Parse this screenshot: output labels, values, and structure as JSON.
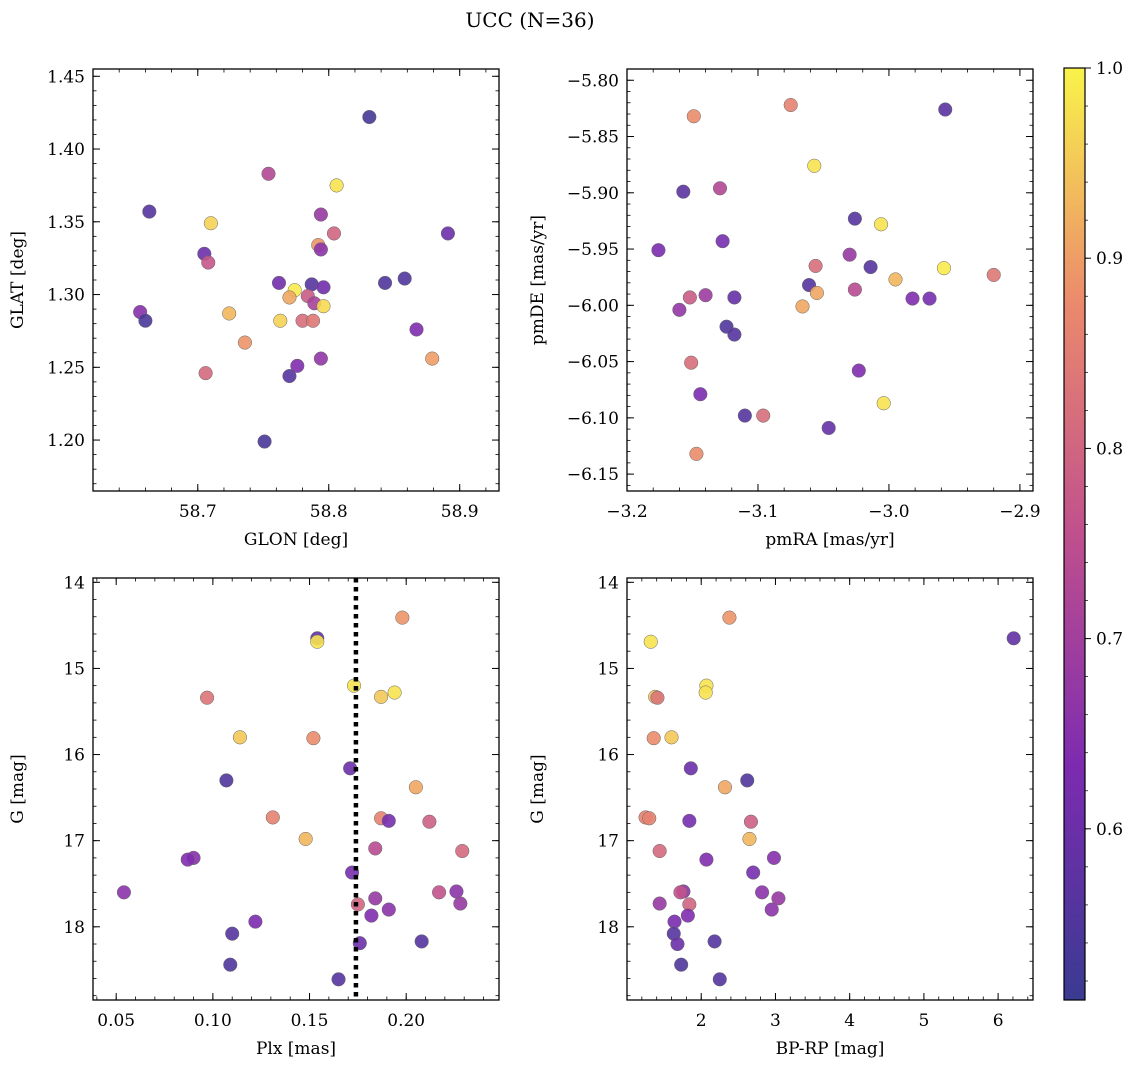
{
  "figure": {
    "title": "UCC (N=36)"
  },
  "colorbar": {
    "vmin": 0.51,
    "vmax": 1.0,
    "ticks": [
      0.6,
      0.7,
      0.8,
      0.9,
      1.0
    ],
    "tick_labels": [
      "0.6",
      "0.7",
      "0.8",
      "0.9",
      "1.0"
    ],
    "colormap": "plasma"
  },
  "chart_data": [
    {
      "type": "scatter",
      "title": "",
      "xlabel": "GLON [deg]",
      "ylabel": "GLAT [deg]",
      "xlim": [
        58.62,
        58.93
      ],
      "ylim": [
        1.165,
        1.455
      ],
      "y_inverted": false,
      "xticks": [
        58.7,
        58.8,
        58.9
      ],
      "xtick_labels": [
        "58.7",
        "58.8",
        "58.9"
      ],
      "yticks": [
        1.2,
        1.25,
        1.3,
        1.35,
        1.4,
        1.45
      ],
      "ytick_labels": [
        "1.20",
        "1.25",
        "1.30",
        "1.35",
        "1.40",
        "1.45"
      ],
      "points": [
        {
          "x": 58.831,
          "y": 1.422,
          "c": 0.53
        },
        {
          "x": 58.754,
          "y": 1.383,
          "c": 0.73
        },
        {
          "x": 58.806,
          "y": 1.375,
          "c": 0.98
        },
        {
          "x": 58.663,
          "y": 1.357,
          "c": 0.56
        },
        {
          "x": 58.794,
          "y": 1.355,
          "c": 0.68
        },
        {
          "x": 58.71,
          "y": 1.349,
          "c": 0.96
        },
        {
          "x": 58.891,
          "y": 1.342,
          "c": 0.6
        },
        {
          "x": 58.804,
          "y": 1.342,
          "c": 0.8
        },
        {
          "x": 58.792,
          "y": 1.334,
          "c": 0.89
        },
        {
          "x": 58.794,
          "y": 1.331,
          "c": 0.66
        },
        {
          "x": 58.705,
          "y": 1.328,
          "c": 0.6
        },
        {
          "x": 58.708,
          "y": 1.322,
          "c": 0.77
        },
        {
          "x": 58.858,
          "y": 1.311,
          "c": 0.55
        },
        {
          "x": 58.843,
          "y": 1.308,
          "c": 0.55
        },
        {
          "x": 58.762,
          "y": 1.308,
          "c": 0.61
        },
        {
          "x": 58.787,
          "y": 1.307,
          "c": 0.56
        },
        {
          "x": 58.796,
          "y": 1.305,
          "c": 0.61
        },
        {
          "x": 58.774,
          "y": 1.303,
          "c": 0.99
        },
        {
          "x": 58.784,
          "y": 1.299,
          "c": 0.78
        },
        {
          "x": 58.77,
          "y": 1.298,
          "c": 0.91
        },
        {
          "x": 58.789,
          "y": 1.294,
          "c": 0.71
        },
        {
          "x": 58.796,
          "y": 1.292,
          "c": 0.97
        },
        {
          "x": 58.656,
          "y": 1.288,
          "c": 0.65
        },
        {
          "x": 58.724,
          "y": 1.287,
          "c": 0.93
        },
        {
          "x": 58.66,
          "y": 1.282,
          "c": 0.54
        },
        {
          "x": 58.763,
          "y": 1.282,
          "c": 0.96
        },
        {
          "x": 58.78,
          "y": 1.282,
          "c": 0.82
        },
        {
          "x": 58.788,
          "y": 1.282,
          "c": 0.84
        },
        {
          "x": 58.867,
          "y": 1.276,
          "c": 0.64
        },
        {
          "x": 58.736,
          "y": 1.267,
          "c": 0.89
        },
        {
          "x": 58.879,
          "y": 1.256,
          "c": 0.9
        },
        {
          "x": 58.794,
          "y": 1.256,
          "c": 0.67
        },
        {
          "x": 58.776,
          "y": 1.251,
          "c": 0.64
        },
        {
          "x": 58.706,
          "y": 1.246,
          "c": 0.81
        },
        {
          "x": 58.77,
          "y": 1.244,
          "c": 0.56
        },
        {
          "x": 58.751,
          "y": 1.199,
          "c": 0.54
        }
      ]
    },
    {
      "type": "scatter",
      "title": "",
      "xlabel": "pmRA [mas/yr]",
      "ylabel": "pmDE [mas/yr]",
      "xlim": [
        -3.2,
        -2.89
      ],
      "ylim": [
        -6.165,
        -5.79
      ],
      "y_inverted": false,
      "xticks": [
        -3.2,
        -3.1,
        -3.0,
        -2.9
      ],
      "xtick_labels": [
        "−3.2",
        "−3.1",
        "−3.0",
        "−2.9"
      ],
      "yticks": [
        -6.15,
        -6.1,
        -6.05,
        -6.0,
        -5.95,
        -5.9,
        -5.85,
        -5.8
      ],
      "ytick_labels": [
        "−6.15",
        "−6.10",
        "−6.05",
        "−6.00",
        "−5.95",
        "−5.90",
        "−5.85",
        "−5.80"
      ],
      "points": [
        {
          "x": -3.075,
          "y": -5.822,
          "c": 0.86
        },
        {
          "x": -2.957,
          "y": -5.826,
          "c": 0.57
        },
        {
          "x": -3.149,
          "y": -5.832,
          "c": 0.88
        },
        {
          "x": -3.057,
          "y": -5.876,
          "c": 0.98
        },
        {
          "x": -3.129,
          "y": -5.896,
          "c": 0.73
        },
        {
          "x": -3.157,
          "y": -5.899,
          "c": 0.57
        },
        {
          "x": -3.026,
          "y": -5.923,
          "c": 0.56
        },
        {
          "x": -3.006,
          "y": -5.928,
          "c": 0.98
        },
        {
          "x": -3.127,
          "y": -5.943,
          "c": 0.62
        },
        {
          "x": -3.176,
          "y": -5.951,
          "c": 0.63
        },
        {
          "x": -3.03,
          "y": -5.955,
          "c": 0.68
        },
        {
          "x": -3.056,
          "y": -5.965,
          "c": 0.82
        },
        {
          "x": -2.958,
          "y": -5.967,
          "c": 0.99
        },
        {
          "x": -3.014,
          "y": -5.966,
          "c": 0.56
        },
        {
          "x": -2.92,
          "y": -5.973,
          "c": 0.84
        },
        {
          "x": -2.995,
          "y": -5.977,
          "c": 0.93
        },
        {
          "x": -3.061,
          "y": -5.982,
          "c": 0.56
        },
        {
          "x": -3.026,
          "y": -5.986,
          "c": 0.74
        },
        {
          "x": -3.055,
          "y": -5.989,
          "c": 0.91
        },
        {
          "x": -3.152,
          "y": -5.993,
          "c": 0.78
        },
        {
          "x": -3.14,
          "y": -5.991,
          "c": 0.69
        },
        {
          "x": -3.118,
          "y": -5.993,
          "c": 0.59
        },
        {
          "x": -2.982,
          "y": -5.994,
          "c": 0.64
        },
        {
          "x": -2.969,
          "y": -5.994,
          "c": 0.62
        },
        {
          "x": -3.066,
          "y": -6.001,
          "c": 0.91
        },
        {
          "x": -3.16,
          "y": -6.004,
          "c": 0.67
        },
        {
          "x": -3.124,
          "y": -6.019,
          "c": 0.55
        },
        {
          "x": -3.118,
          "y": -6.026,
          "c": 0.56
        },
        {
          "x": -3.151,
          "y": -6.051,
          "c": 0.82
        },
        {
          "x": -3.023,
          "y": -6.058,
          "c": 0.64
        },
        {
          "x": -3.144,
          "y": -6.079,
          "c": 0.63
        },
        {
          "x": -3.004,
          "y": -6.087,
          "c": 0.98
        },
        {
          "x": -3.11,
          "y": -6.098,
          "c": 0.56
        },
        {
          "x": -3.096,
          "y": -6.098,
          "c": 0.82
        },
        {
          "x": -3.046,
          "y": -6.109,
          "c": 0.59
        },
        {
          "x": -3.147,
          "y": -6.132,
          "c": 0.88
        }
      ]
    },
    {
      "type": "scatter",
      "title": "",
      "xlabel": "Plx [mas]",
      "ylabel": "G [mag]",
      "xlim": [
        0.038,
        0.248
      ],
      "ylim": [
        18.85,
        13.95
      ],
      "y_inverted": true,
      "xticks": [
        0.05,
        0.1,
        0.15,
        0.2
      ],
      "xtick_labels": [
        "0.05",
        "0.10",
        "0.15",
        "0.20"
      ],
      "yticks": [
        14,
        15,
        16,
        17,
        18
      ],
      "ytick_labels": [
        "14",
        "15",
        "16",
        "17",
        "18"
      ],
      "vline": {
        "x": 0.174,
        "style": "dotted"
      },
      "points": [
        {
          "x": 0.198,
          "y": 14.41,
          "c": 0.89
        },
        {
          "x": 0.154,
          "y": 14.65,
          "c": 0.58
        },
        {
          "x": 0.154,
          "y": 14.69,
          "c": 0.98
        },
        {
          "x": 0.173,
          "y": 15.2,
          "c": 0.98
        },
        {
          "x": 0.194,
          "y": 15.28,
          "c": 0.98
        },
        {
          "x": 0.187,
          "y": 15.33,
          "c": 0.95
        },
        {
          "x": 0.097,
          "y": 15.34,
          "c": 0.83
        },
        {
          "x": 0.114,
          "y": 15.8,
          "c": 0.95
        },
        {
          "x": 0.152,
          "y": 15.81,
          "c": 0.88
        },
        {
          "x": 0.171,
          "y": 16.16,
          "c": 0.6
        },
        {
          "x": 0.107,
          "y": 16.3,
          "c": 0.55
        },
        {
          "x": 0.205,
          "y": 16.38,
          "c": 0.91
        },
        {
          "x": 0.131,
          "y": 16.73,
          "c": 0.86
        },
        {
          "x": 0.187,
          "y": 16.74,
          "c": 0.86
        },
        {
          "x": 0.191,
          "y": 16.77,
          "c": 0.62
        },
        {
          "x": 0.212,
          "y": 16.78,
          "c": 0.79
        },
        {
          "x": 0.148,
          "y": 16.98,
          "c": 0.93
        },
        {
          "x": 0.184,
          "y": 17.09,
          "c": 0.74
        },
        {
          "x": 0.229,
          "y": 17.12,
          "c": 0.81
        },
        {
          "x": 0.09,
          "y": 17.2,
          "c": 0.65
        },
        {
          "x": 0.087,
          "y": 17.22,
          "c": 0.64
        },
        {
          "x": 0.172,
          "y": 17.37,
          "c": 0.62
        },
        {
          "x": 0.054,
          "y": 17.6,
          "c": 0.66
        },
        {
          "x": 0.217,
          "y": 17.6,
          "c": 0.76
        },
        {
          "x": 0.226,
          "y": 17.59,
          "c": 0.66
        },
        {
          "x": 0.184,
          "y": 17.67,
          "c": 0.68
        },
        {
          "x": 0.228,
          "y": 17.73,
          "c": 0.68
        },
        {
          "x": 0.175,
          "y": 17.74,
          "c": 0.8
        },
        {
          "x": 0.191,
          "y": 17.8,
          "c": 0.66
        },
        {
          "x": 0.182,
          "y": 17.87,
          "c": 0.64
        },
        {
          "x": 0.122,
          "y": 17.94,
          "c": 0.63
        },
        {
          "x": 0.11,
          "y": 18.08,
          "c": 0.56
        },
        {
          "x": 0.208,
          "y": 18.17,
          "c": 0.56
        },
        {
          "x": 0.176,
          "y": 18.19,
          "c": 0.6
        },
        {
          "x": 0.109,
          "y": 18.44,
          "c": 0.55
        },
        {
          "x": 0.165,
          "y": 18.61,
          "c": 0.56
        }
      ]
    },
    {
      "type": "scatter",
      "title": "",
      "xlabel": "BP-RP [mag]",
      "ylabel": "G [mag]",
      "xlim": [
        1.0,
        6.47
      ],
      "ylim": [
        18.85,
        13.95
      ],
      "y_inverted": true,
      "xticks": [
        2,
        3,
        4,
        5,
        6
      ],
      "xtick_labels": [
        "2",
        "3",
        "4",
        "5",
        "6"
      ],
      "yticks": [
        14,
        15,
        16,
        17,
        18
      ],
      "ytick_labels": [
        "14",
        "15",
        "16",
        "17",
        "18"
      ],
      "points": [
        {
          "x": 2.38,
          "y": 14.41,
          "c": 0.89
        },
        {
          "x": 6.21,
          "y": 14.65,
          "c": 0.58
        },
        {
          "x": 1.32,
          "y": 14.69,
          "c": 0.98
        },
        {
          "x": 2.07,
          "y": 15.2,
          "c": 0.98
        },
        {
          "x": 2.06,
          "y": 15.28,
          "c": 0.98
        },
        {
          "x": 1.38,
          "y": 15.33,
          "c": 0.95
        },
        {
          "x": 1.41,
          "y": 15.34,
          "c": 0.83
        },
        {
          "x": 1.6,
          "y": 15.8,
          "c": 0.95
        },
        {
          "x": 1.36,
          "y": 15.81,
          "c": 0.88
        },
        {
          "x": 1.86,
          "y": 16.16,
          "c": 0.6
        },
        {
          "x": 2.62,
          "y": 16.3,
          "c": 0.55
        },
        {
          "x": 2.32,
          "y": 16.38,
          "c": 0.91
        },
        {
          "x": 1.25,
          "y": 16.73,
          "c": 0.86
        },
        {
          "x": 1.3,
          "y": 16.74,
          "c": 0.86
        },
        {
          "x": 1.84,
          "y": 16.77,
          "c": 0.62
        },
        {
          "x": 2.67,
          "y": 16.78,
          "c": 0.79
        },
        {
          "x": 2.65,
          "y": 16.98,
          "c": 0.93
        },
        {
          "x": 1.44,
          "y": 17.12,
          "c": 0.81
        },
        {
          "x": 2.98,
          "y": 17.2,
          "c": 0.65
        },
        {
          "x": 2.07,
          "y": 17.22,
          "c": 0.64
        },
        {
          "x": 2.7,
          "y": 17.37,
          "c": 0.62
        },
        {
          "x": 1.76,
          "y": 17.59,
          "c": 0.66
        },
        {
          "x": 1.72,
          "y": 17.6,
          "c": 0.76
        },
        {
          "x": 2.82,
          "y": 17.6,
          "c": 0.66
        },
        {
          "x": 3.04,
          "y": 17.67,
          "c": 0.68
        },
        {
          "x": 1.44,
          "y": 17.73,
          "c": 0.68
        },
        {
          "x": 1.84,
          "y": 17.74,
          "c": 0.8
        },
        {
          "x": 2.95,
          "y": 17.8,
          "c": 0.66
        },
        {
          "x": 1.82,
          "y": 17.87,
          "c": 0.64
        },
        {
          "x": 1.64,
          "y": 17.94,
          "c": 0.63
        },
        {
          "x": 1.63,
          "y": 18.08,
          "c": 0.56
        },
        {
          "x": 1.68,
          "y": 18.2,
          "c": 0.6
        },
        {
          "x": 2.18,
          "y": 18.17,
          "c": 0.56
        },
        {
          "x": 1.73,
          "y": 18.44,
          "c": 0.55
        },
        {
          "x": 2.25,
          "y": 18.61,
          "c": 0.56
        }
      ]
    }
  ]
}
